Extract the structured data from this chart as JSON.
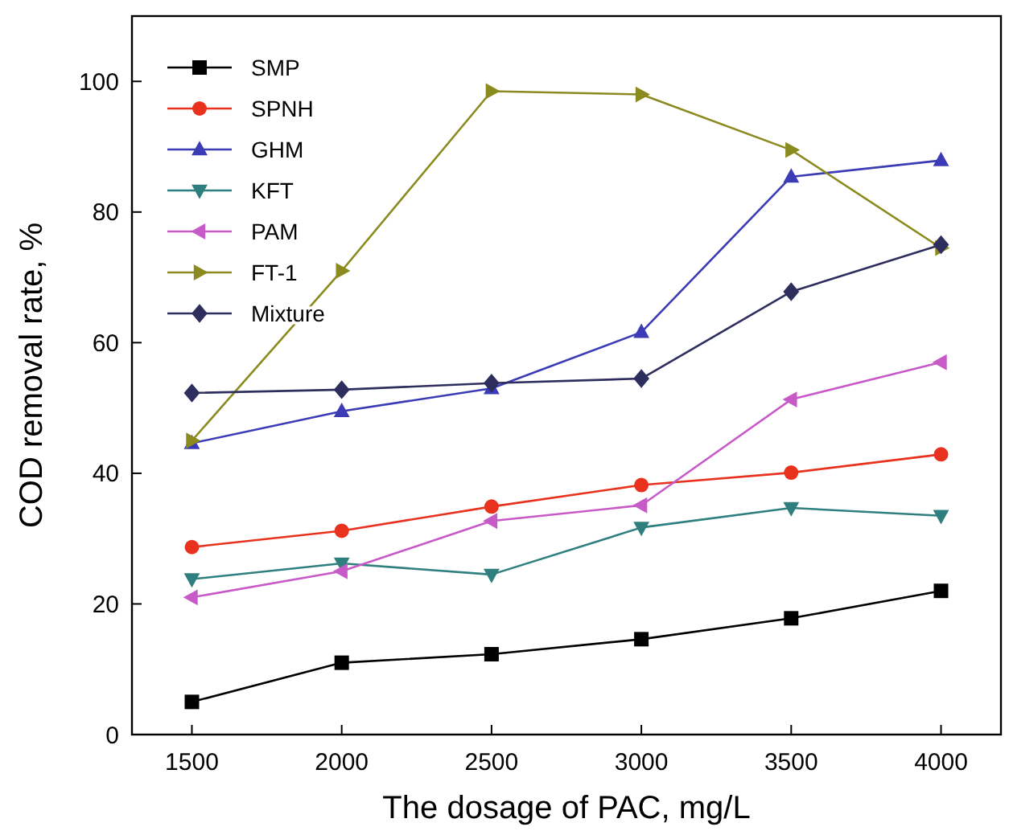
{
  "chart_data": {
    "type": "line",
    "xlabel": "The dosage of PAC, mg/L",
    "ylabel": "COD removal rate, %",
    "x": [
      1500,
      2000,
      2500,
      3000,
      3500,
      4000
    ],
    "xlim": [
      1300,
      4200
    ],
    "xticks": [
      1500,
      2000,
      2500,
      3000,
      3500,
      4000
    ],
    "ylim": [
      0,
      110
    ],
    "yticks": [
      0,
      20,
      40,
      60,
      80,
      100
    ],
    "grid": false,
    "legend": "top left",
    "series": [
      {
        "name": "SMP",
        "color": "#000000",
        "marker": "square",
        "values": [
          5,
          11,
          12.3,
          14.6,
          17.8,
          22
        ]
      },
      {
        "name": "SPNH",
        "color": "#e8321e",
        "marker": "circle",
        "values": [
          28.7,
          31.2,
          34.9,
          38.2,
          40.1,
          42.9
        ]
      },
      {
        "name": "GHM",
        "color": "#3b3bb5",
        "marker": "triangle",
        "values": [
          44.6,
          49.5,
          53,
          61.6,
          85.4,
          87.9
        ]
      },
      {
        "name": "KFT",
        "color": "#2f7f7f",
        "marker": "triangle-down",
        "values": [
          23.8,
          26.2,
          24.5,
          31.7,
          34.7,
          33.5
        ]
      },
      {
        "name": "PAM",
        "color": "#c85ac8",
        "marker": "triangle-left",
        "values": [
          21,
          25,
          32.7,
          35.1,
          51.3,
          57
        ]
      },
      {
        "name": "FT-1",
        "color": "#8a8a1e",
        "marker": "triangle-right",
        "values": [
          45,
          71,
          98.5,
          98,
          89.5,
          74.5
        ]
      },
      {
        "name": "Mixture",
        "color": "#2e2e5e",
        "marker": "diamond",
        "values": [
          52.3,
          52.8,
          53.8,
          54.5,
          67.8,
          75
        ]
      }
    ]
  }
}
